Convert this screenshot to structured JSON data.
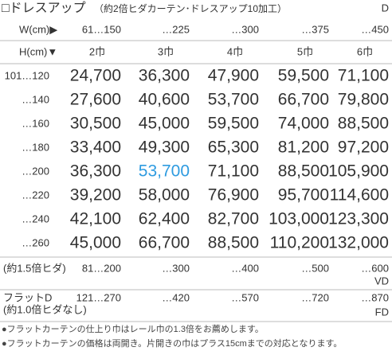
{
  "header": {
    "title": "□ドレスアップ",
    "subtitle": "（約2倍ヒダカーテン･ドレスアップ10加工）",
    "code": "D"
  },
  "table": {
    "width_label": "W(cm)▶",
    "widths": [
      "61…150",
      "…225",
      "…300",
      "…375",
      "…450"
    ],
    "height_label": "H(cm)▼",
    "panels": [
      "2巾",
      "3巾",
      "4巾",
      "5巾",
      "6巾"
    ],
    "rows": [
      {
        "height": "101…120",
        "prices": [
          "24,700",
          "36,300",
          "47,900",
          "59,500",
          "71,100"
        ]
      },
      {
        "height": "…140",
        "prices": [
          "27,600",
          "40,600",
          "53,700",
          "66,700",
          "79,800"
        ]
      },
      {
        "height": "…160",
        "prices": [
          "30,500",
          "45,000",
          "59,500",
          "74,000",
          "88,500"
        ]
      },
      {
        "height": "…180",
        "prices": [
          "33,400",
          "49,300",
          "65,300",
          "81,200",
          "97,200"
        ]
      },
      {
        "height": "…200",
        "prices": [
          "36,300",
          {
            "text": "53,700",
            "color": "#2e9be0"
          },
          "71,100",
          "88,500",
          "105,900"
        ]
      },
      {
        "height": "…220",
        "prices": [
          "39,200",
          "58,000",
          "76,900",
          "95,700",
          "114,600"
        ]
      },
      {
        "height": "…240",
        "prices": [
          "42,100",
          "62,400",
          "82,700",
          "103,000",
          "123,300"
        ]
      },
      {
        "height": "…260",
        "prices": [
          "45,000",
          "66,700",
          "88,500",
          "110,200",
          "132,000"
        ]
      }
    ],
    "vd": {
      "label": "(約1.5倍ヒダ)",
      "widths": [
        "81…200",
        "…300",
        "…400",
        "…500",
        "…600"
      ],
      "code": "VD"
    },
    "fd": {
      "label": "フラットD",
      "sublabel": "(約1.0倍ヒダなし)",
      "widths": [
        "121…270",
        "…420",
        "…570",
        "…720",
        "…870"
      ],
      "code": "FD"
    }
  },
  "notes": [
    "●フラットカーテンの仕上り巾はレール巾の1.3倍をお薦めします。",
    "●フラットカーテンの価格は両開き。片開きの巾はプラス15cmまでの対応となります。"
  ]
}
